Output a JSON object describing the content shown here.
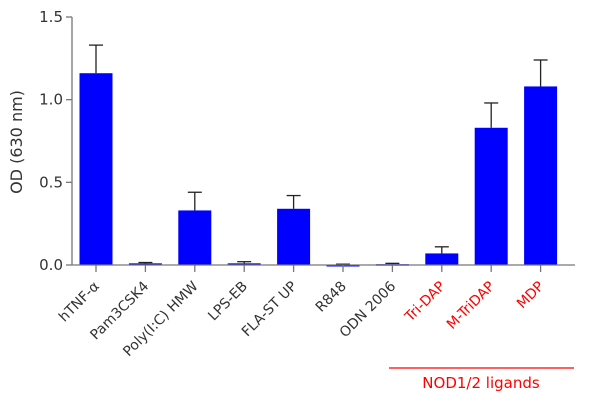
{
  "chart_data": {
    "type": "bar",
    "title": "",
    "xlabel": "",
    "ylabel": "OD (630 nm)",
    "ylim": [
      0,
      1.5
    ],
    "yticks": [
      "0.0",
      "0.5",
      "1.0",
      "1.5"
    ],
    "categories": [
      "hTNF-α",
      "Pam3CSK4",
      "Poly(I:C) HMW",
      "LPS-EB",
      "FLA-ST UP",
      "R848",
      "ODN 2006",
      "Tri-DAP",
      "M-TriDAP",
      "MDP"
    ],
    "values": [
      1.16,
      0.01,
      0.33,
      0.01,
      0.34,
      0.0,
      0.005,
      0.07,
      0.83,
      1.08
    ],
    "errors": [
      0.17,
      0.005,
      0.11,
      0.01,
      0.08,
      0.005,
      0.005,
      0.04,
      0.15,
      0.16
    ],
    "highlighted": [
      "Tri-DAP",
      "M-TriDAP",
      "MDP"
    ],
    "annotation": "NOD1/2 ligands",
    "bar_color": "#0000ff",
    "highlight_color": "#ff0000"
  }
}
